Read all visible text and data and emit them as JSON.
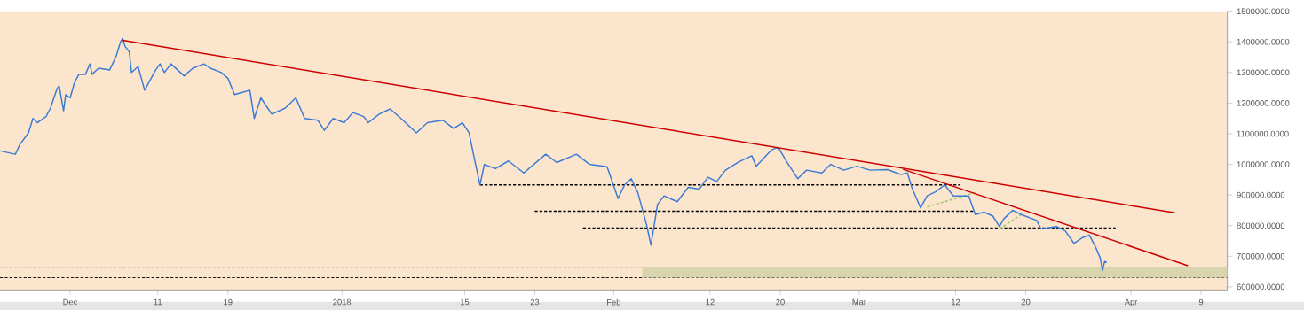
{
  "chart_data": {
    "type": "line",
    "xlim": [
      "2017-11-23",
      "2018-04-12"
    ],
    "ylim": [
      590000,
      1500000
    ],
    "xticks": [
      {
        "value": "2017-12-01",
        "label": "Dec"
      },
      {
        "value": "2017-12-11",
        "label": "11"
      },
      {
        "value": "2017-12-19",
        "label": "19"
      },
      {
        "value": "2018-01-01",
        "label": "2018"
      },
      {
        "value": "2018-01-15",
        "label": "15"
      },
      {
        "value": "2018-01-23",
        "label": "23"
      },
      {
        "value": "2018-02-01",
        "label": "Feb"
      },
      {
        "value": "2018-02-12",
        "label": "12"
      },
      {
        "value": "2018-02-20",
        "label": "20"
      },
      {
        "value": "2018-03-01",
        "label": "Mar"
      },
      {
        "value": "2018-03-12",
        "label": "12"
      },
      {
        "value": "2018-03-20",
        "label": "20"
      },
      {
        "value": "2018-04-01",
        "label": "Apr"
      },
      {
        "value": "2018-04-09",
        "label": "9"
      }
    ],
    "yticks": [
      {
        "value": 600000,
        "label": "600000.0000"
      },
      {
        "value": 700000,
        "label": "700000.0000"
      },
      {
        "value": 800000,
        "label": "800000.0000"
      },
      {
        "value": 900000,
        "label": "900000.0000"
      },
      {
        "value": 1000000,
        "label": "1000000.0000"
      },
      {
        "value": 1100000,
        "label": "1100000.0000"
      },
      {
        "value": 1200000,
        "label": "1200000.0000"
      },
      {
        "value": 1300000,
        "label": "1300000.0000"
      },
      {
        "value": 1400000,
        "label": "1400000.0000"
      },
      {
        "value": 1500000,
        "label": "1500000.0000"
      }
    ],
    "grid": false,
    "ref_lines": [
      {
        "axis": "y",
        "value": 664000,
        "color": "#000000",
        "line_style": "dashed"
      },
      {
        "axis": "y",
        "value": 630000,
        "color": "#000000",
        "line_style": "dashed"
      }
    ],
    "series": [
      {
        "type": "area",
        "color": "#d8d5ae",
        "x": [
          "2018-02-04T06:00",
          "2018-04-12"
        ],
        "values": [
          null,
          null
        ],
        "upper": [
          664000,
          664000
        ],
        "lower": [
          630000,
          630000
        ]
      },
      {
        "color": "#000000",
        "line_style": "dashed",
        "x": [
          "2018-01-16T18:00",
          "2018-03-12T12:00"
        ],
        "values": [
          933000,
          933000
        ]
      },
      {
        "color": "#000000",
        "line_style": "dashed",
        "x": [
          "2018-01-23",
          "2018-03-14"
        ],
        "values": [
          847000,
          847000
        ]
      },
      {
        "color": "#000000",
        "line_style": "dashed",
        "x": [
          "2018-01-28T12:00",
          "2018-03-30T06:00"
        ],
        "values": [
          792000,
          792000
        ]
      },
      {
        "color": "#9cc86a",
        "line_style": "dashed",
        "x": [
          "2018-03-08T18:00",
          "2018-03-14T06:00"
        ],
        "values": [
          861000,
          908000
        ]
      },
      {
        "color": "#9cc86a",
        "line_style": "dashed",
        "x": [
          "2018-03-17",
          "2018-03-19T12:00"
        ],
        "values": [
          789000,
          836000
        ]
      },
      {
        "color": "#3a7bd5",
        "x": [
          "2017-11-23",
          "2017-11-24T18:00",
          "2017-11-25T06:00",
          "2017-11-26T06:00",
          "2017-11-26T18:00",
          "2017-11-27T06:00",
          "2017-11-28T06:00",
          "2017-11-28T18:00",
          "2017-11-29T12:00",
          "2017-11-29T18:00",
          "2017-11-30T06:00",
          "2017-11-30T12:00",
          "2017-12-01",
          "2017-12-01T12:00",
          "2017-12-02",
          "2017-12-02T18:00",
          "2017-12-03T06:00",
          "2017-12-03T12:00",
          "2017-12-04T06:00",
          "2017-12-05T12:00",
          "2017-12-06T06:00",
          "2017-12-06T18:00",
          "2017-12-07",
          "2017-12-07T06:00",
          "2017-12-07T18:00",
          "2017-12-08",
          "2017-12-08T18:00",
          "2017-12-09T12:00",
          "2017-12-10T18:00",
          "2017-12-11T06:00",
          "2017-12-11T18:00",
          "2017-12-12T12:00",
          "2017-12-14",
          "2017-12-15",
          "2017-12-16T06:00",
          "2017-12-17",
          "2017-12-18T06:00",
          "2017-12-19",
          "2017-12-19T18:00",
          "2017-12-20T18:00",
          "2017-12-21T12:00",
          "2017-12-22",
          "2017-12-22T18:00",
          "2017-12-24",
          "2017-12-25T12:00",
          "2017-12-26T18:00",
          "2017-12-27T18:00",
          "2017-12-29T06:00",
          "2017-12-30",
          "2017-12-31",
          "2018-01-01T06:00",
          "2018-01-02T06:00",
          "2018-01-03T12:00",
          "2018-01-04",
          "2018-01-05T06:00",
          "2018-01-06T12:00",
          "2018-01-07T18:00",
          "2018-01-09T12:00",
          "2018-01-10T18:00",
          "2018-01-12T12:00",
          "2018-01-13T18:00",
          "2018-01-14T18:00",
          "2018-01-15T12:00",
          "2018-01-16T06:00",
          "2018-01-16T18:00",
          "2018-01-17T06:00",
          "2018-01-18T12:00",
          "2018-01-20",
          "2018-01-21T18:00",
          "2018-01-24T06:00",
          "2018-01-25T12:00",
          "2018-01-27T18:00",
          "2018-01-29T06:00",
          "2018-01-31T06:00",
          "2018-02-01T12:00",
          "2018-02-02T06:00",
          "2018-02-03",
          "2018-02-03T18:00",
          "2018-02-04T18:00",
          "2018-02-05T06:00",
          "2018-02-06",
          "2018-02-06T18:00",
          "2018-02-08T06:00",
          "2018-02-09T12:00",
          "2018-02-10T18:00",
          "2018-02-11T18:00",
          "2018-02-12T18:00",
          "2018-02-13T18:00",
          "2018-02-15T06:00",
          "2018-02-16T18:00",
          "2018-02-17T06:00",
          "2018-02-19",
          "2018-02-19T18:00",
          "2018-02-20T18:00",
          "2018-02-22",
          "2018-02-23",
          "2018-02-24T18:00",
          "2018-02-25T18:00",
          "2018-02-27T06:00",
          "2018-02-28T18:00",
          "2018-03-02T06:00",
          "2018-03-04T06:00",
          "2018-03-05T18:00",
          "2018-03-06T12:00",
          "2018-03-07",
          "2018-03-08",
          "2018-03-08T18:00",
          "2018-03-09T18:00",
          "2018-03-10T18:00",
          "2018-03-11T18:00",
          "2018-03-13T12:00",
          "2018-03-14T06:00",
          "2018-03-15T06:00",
          "2018-03-16T06:00",
          "2018-03-17",
          "2018-03-17T12:00",
          "2018-03-18T12:00",
          "2018-03-19T12:00",
          "2018-03-21T06:00",
          "2018-03-21T18:00",
          "2018-03-23T12:00",
          "2018-03-24T12:00",
          "2018-03-25T12:00",
          "2018-03-26T12:00",
          "2018-03-27T06:00",
          "2018-03-28",
          "2018-03-28T12:00",
          "2018-03-28T18:00",
          "2018-03-29",
          "2018-03-29T06:00"
        ],
        "values": [
          1044000,
          1033000,
          1064000,
          1103000,
          1150000,
          1136000,
          1156000,
          1183000,
          1247000,
          1256000,
          1175000,
          1228000,
          1217000,
          1267000,
          1294000,
          1294000,
          1328000,
          1294000,
          1314000,
          1308000,
          1353000,
          1400000,
          1411000,
          1386000,
          1367000,
          1300000,
          1319000,
          1242000,
          1308000,
          1328000,
          1300000,
          1328000,
          1289000,
          1314000,
          1328000,
          1314000,
          1300000,
          1281000,
          1228000,
          1236000,
          1242000,
          1150000,
          1217000,
          1164000,
          1183000,
          1217000,
          1150000,
          1144000,
          1111000,
          1150000,
          1136000,
          1169000,
          1156000,
          1136000,
          1164000,
          1181000,
          1150000,
          1103000,
          1136000,
          1144000,
          1117000,
          1136000,
          1103000,
          1000000,
          933000,
          1000000,
          986000,
          1011000,
          972000,
          1033000,
          1006000,
          1033000,
          1000000,
          992000,
          889000,
          933000,
          953000,
          908000,
          803000,
          736000,
          869000,
          897000,
          878000,
          925000,
          919000,
          958000,
          944000,
          981000,
          1008000,
          1028000,
          994000,
          1047000,
          1056000,
          1008000,
          953000,
          981000,
          972000,
          1000000,
          981000,
          994000,
          981000,
          983000,
          967000,
          972000,
          925000,
          858000,
          897000,
          911000,
          933000,
          897000,
          897000,
          836000,
          844000,
          831000,
          797000,
          822000,
          850000,
          836000,
          817000,
          789000,
          797000,
          783000,
          742000,
          761000,
          769000,
          728000,
          694000,
          653000,
          683000,
          680000
        ]
      },
      {
        "color": "#cc0000",
        "x": [
          "2017-12-07",
          "2018-04-06"
        ],
        "values": [
          1405000,
          842000
        ]
      },
      {
        "color": "#cc0000",
        "x": [
          "2018-03-06",
          "2018-04-07T12:00"
        ],
        "values": [
          984000,
          669000
        ]
      }
    ]
  }
}
